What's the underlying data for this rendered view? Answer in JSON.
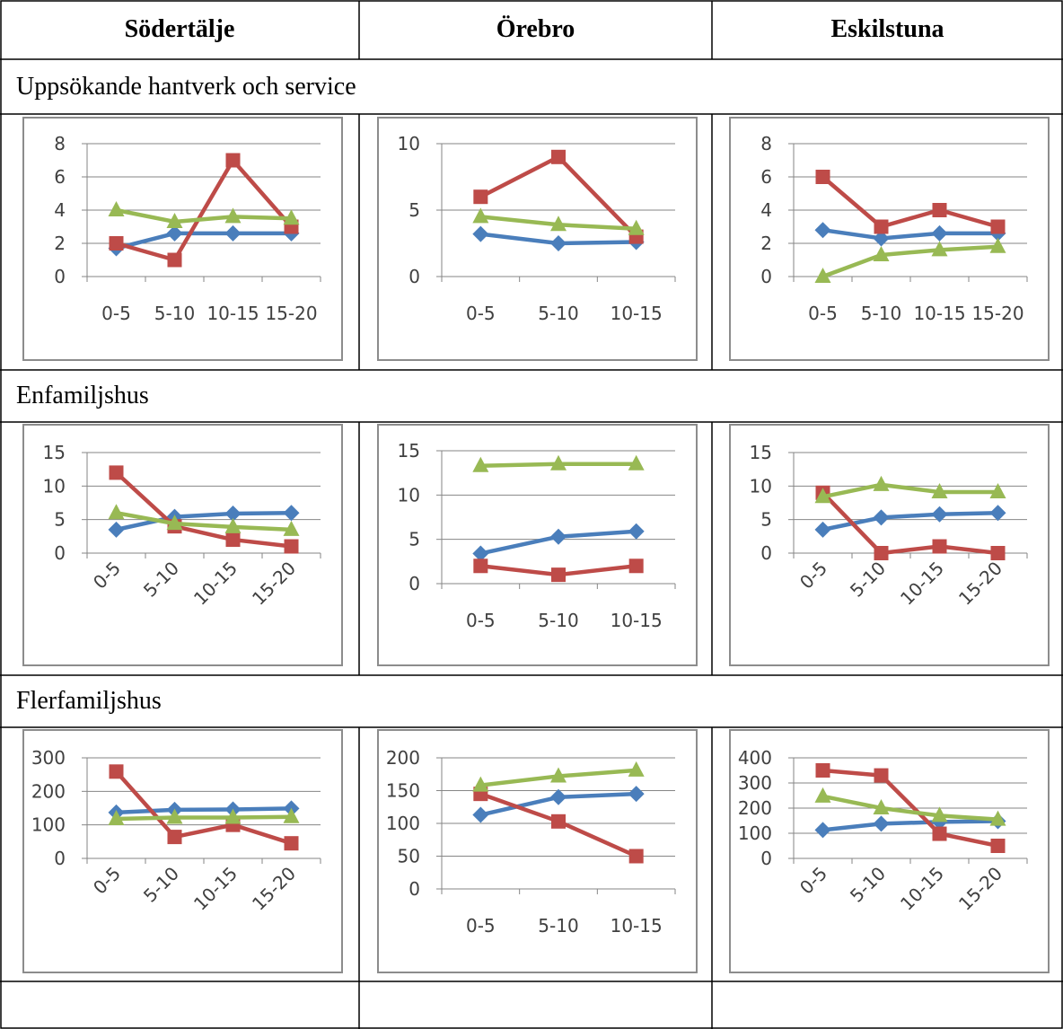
{
  "headers": [
    "Södertälje",
    "Örebro",
    "Eskilstuna"
  ],
  "sections": [
    "Uppsökande hantverk och service",
    "Enfamiljshus",
    "Flerfamiljshus"
  ],
  "colors": {
    "blue": "#4a7ebb",
    "red": "#be4b48",
    "green": "#98b954",
    "grid": "#868686"
  },
  "chart_data": [
    {
      "type": "line",
      "categories": [
        "0-5",
        "5-10",
        "10-15",
        "15-20"
      ],
      "ylim": [
        0,
        8
      ],
      "yticks": [
        0,
        2,
        4,
        6,
        8
      ],
      "rotated": false,
      "series": [
        {
          "color": "blue",
          "values": [
            1.7,
            2.6,
            2.6,
            2.6
          ]
        },
        {
          "color": "red",
          "values": [
            2,
            1,
            7,
            3
          ]
        },
        {
          "color": "green",
          "values": [
            4,
            3.3,
            3.6,
            3.5
          ]
        }
      ]
    },
    {
      "type": "line",
      "categories": [
        "0-5",
        "5-10",
        "10-15"
      ],
      "ylim": [
        0,
        10
      ],
      "yticks": [
        0,
        5,
        10
      ],
      "rotated": false,
      "series": [
        {
          "color": "blue",
          "values": [
            3.2,
            2.5,
            2.6
          ]
        },
        {
          "color": "red",
          "values": [
            6,
            9,
            3
          ]
        },
        {
          "color": "green",
          "values": [
            4.5,
            3.9,
            3.6
          ]
        }
      ]
    },
    {
      "type": "line",
      "categories": [
        "0-5",
        "5-10",
        "10-15",
        "15-20"
      ],
      "ylim": [
        0,
        8
      ],
      "yticks": [
        0,
        2,
        4,
        6,
        8
      ],
      "rotated": false,
      "series": [
        {
          "color": "blue",
          "values": [
            2.8,
            2.3,
            2.6,
            2.6
          ]
        },
        {
          "color": "red",
          "values": [
            6,
            3,
            4,
            3
          ]
        },
        {
          "color": "green",
          "values": [
            0,
            1.3,
            1.6,
            1.8
          ]
        }
      ]
    },
    {
      "type": "line",
      "categories": [
        "0-5",
        "5-10",
        "10-15",
        "15-20"
      ],
      "ylim": [
        0,
        15
      ],
      "yticks": [
        0,
        5,
        10,
        15
      ],
      "rotated": true,
      "series": [
        {
          "color": "blue",
          "values": [
            3.5,
            5.4,
            5.9,
            6
          ]
        },
        {
          "color": "red",
          "values": [
            12,
            4,
            2,
            1
          ]
        },
        {
          "color": "green",
          "values": [
            6,
            4.4,
            3.9,
            3.5
          ]
        }
      ]
    },
    {
      "type": "line",
      "categories": [
        "0-5",
        "5-10",
        "10-15"
      ],
      "ylim": [
        0,
        15
      ],
      "yticks": [
        0,
        5,
        10,
        15
      ],
      "rotated": false,
      "series": [
        {
          "color": "blue",
          "values": [
            3.4,
            5.3,
            5.9
          ]
        },
        {
          "color": "red",
          "values": [
            2,
            1,
            2
          ]
        },
        {
          "color": "green",
          "values": [
            13.3,
            13.5,
            13.5
          ]
        }
      ]
    },
    {
      "type": "line",
      "categories": [
        "0-5",
        "5-10",
        "10-15",
        "15-20"
      ],
      "ylim": [
        0,
        15
      ],
      "yticks": [
        0,
        5,
        10,
        15
      ],
      "rotated": true,
      "series": [
        {
          "color": "blue",
          "values": [
            3.5,
            5.3,
            5.8,
            6
          ]
        },
        {
          "color": "red",
          "values": [
            9,
            0,
            1,
            0
          ]
        },
        {
          "color": "green",
          "values": [
            8.4,
            10.2,
            9.1,
            9.1
          ]
        }
      ]
    },
    {
      "type": "line",
      "categories": [
        "0-5",
        "5-10",
        "10-15",
        "15-20"
      ],
      "ylim": [
        0,
        300
      ],
      "yticks": [
        0,
        100,
        200,
        300
      ],
      "rotated": true,
      "series": [
        {
          "color": "blue",
          "values": [
            137,
            145,
            146,
            149
          ]
        },
        {
          "color": "red",
          "values": [
            259,
            64,
            100,
            45
          ]
        },
        {
          "color": "green",
          "values": [
            118,
            122,
            122,
            124
          ]
        }
      ]
    },
    {
      "type": "line",
      "categories": [
        "0-5",
        "5-10",
        "10-15"
      ],
      "ylim": [
        0,
        200
      ],
      "yticks": [
        0,
        50,
        100,
        150,
        200
      ],
      "rotated": false,
      "series": [
        {
          "color": "blue",
          "values": [
            113,
            140,
            145
          ]
        },
        {
          "color": "red",
          "values": [
            145,
            103,
            50
          ]
        },
        {
          "color": "green",
          "values": [
            158,
            172,
            181
          ]
        }
      ]
    },
    {
      "type": "line",
      "categories": [
        "0-5",
        "5-10",
        "10-15",
        "15-20"
      ],
      "ylim": [
        0,
        400
      ],
      "yticks": [
        0,
        100,
        200,
        300,
        400
      ],
      "rotated": true,
      "series": [
        {
          "color": "blue",
          "values": [
            113,
            138,
            145,
            148
          ]
        },
        {
          "color": "red",
          "values": [
            350,
            330,
            98,
            50
          ]
        },
        {
          "color": "green",
          "values": [
            247,
            200,
            170,
            155
          ]
        }
      ]
    }
  ]
}
